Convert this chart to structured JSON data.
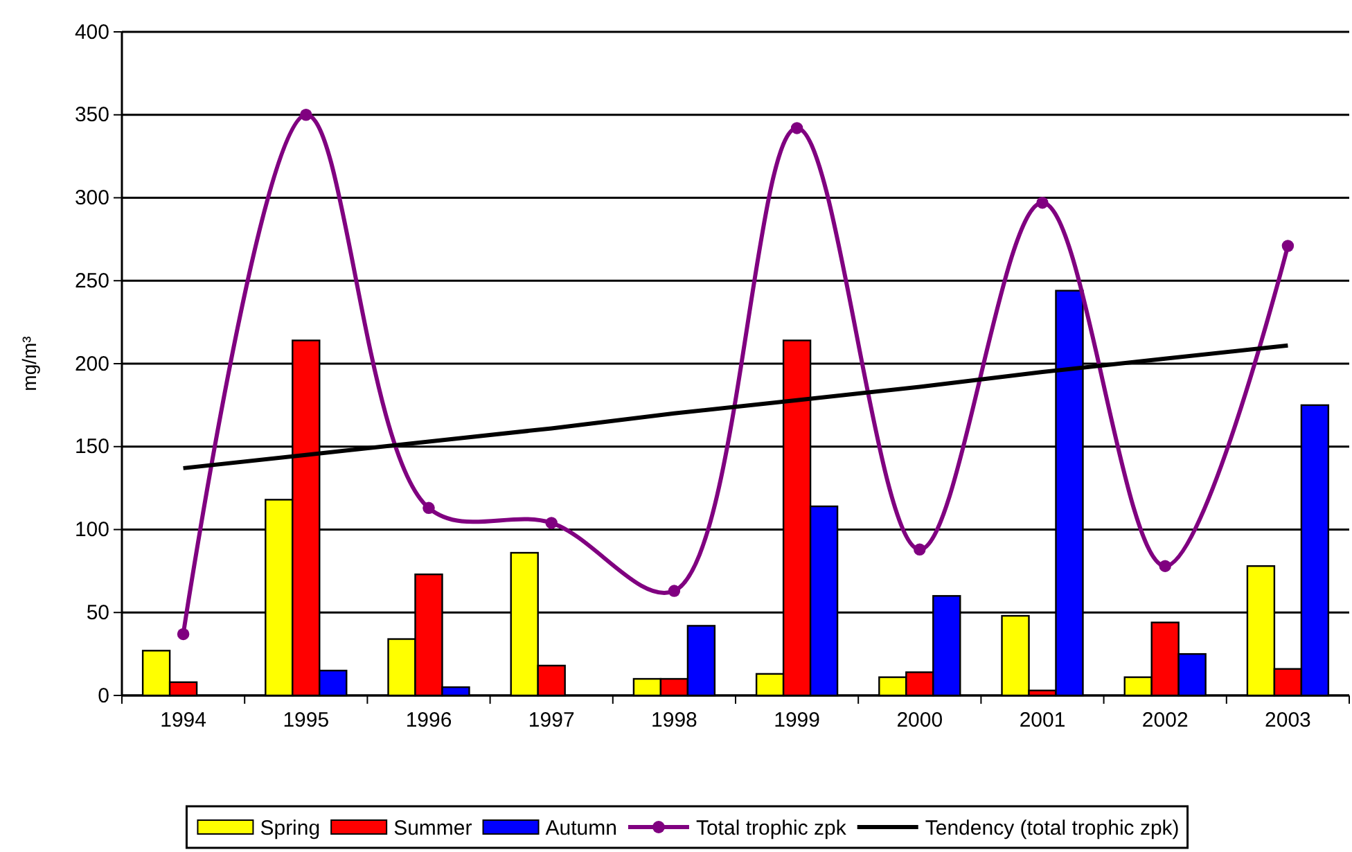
{
  "chart_data": {
    "type": "bar",
    "ylabel": "mg/m³",
    "categories": [
      "1994",
      "1995",
      "1996",
      "1997",
      "1998",
      "1999",
      "2000",
      "2001",
      "2002",
      "2003"
    ],
    "ylim": [
      0,
      400
    ],
    "yticks": [
      0,
      50,
      100,
      150,
      200,
      250,
      300,
      350,
      400
    ],
    "grid": "y",
    "legend": "bottom",
    "series": [
      {
        "name": "Spring",
        "color": "#ffff00",
        "values": [
          27,
          118,
          34,
          86,
          10,
          13,
          11,
          48,
          11,
          78
        ]
      },
      {
        "name": "Summer",
        "color": "#ff0000",
        "values": [
          8,
          214,
          73,
          18,
          10,
          214,
          14,
          3,
          44,
          16
        ]
      },
      {
        "name": "Autumn",
        "color": "#0000ff",
        "values": [
          null,
          15,
          5,
          null,
          42,
          114,
          60,
          244,
          25,
          175
        ]
      },
      {
        "name": "Total trophic zpk",
        "type": "line",
        "marker": "circle",
        "color": "#800080",
        "values": [
          37,
          350,
          113,
          104,
          63,
          342,
          88,
          297,
          78,
          271
        ]
      },
      {
        "name": "Tendency (total trophic zpk)",
        "type": "line",
        "marker": "none",
        "color": "#000000",
        "values": [
          137,
          145,
          153,
          161,
          170,
          178,
          186,
          195,
          203,
          211
        ]
      }
    ]
  }
}
